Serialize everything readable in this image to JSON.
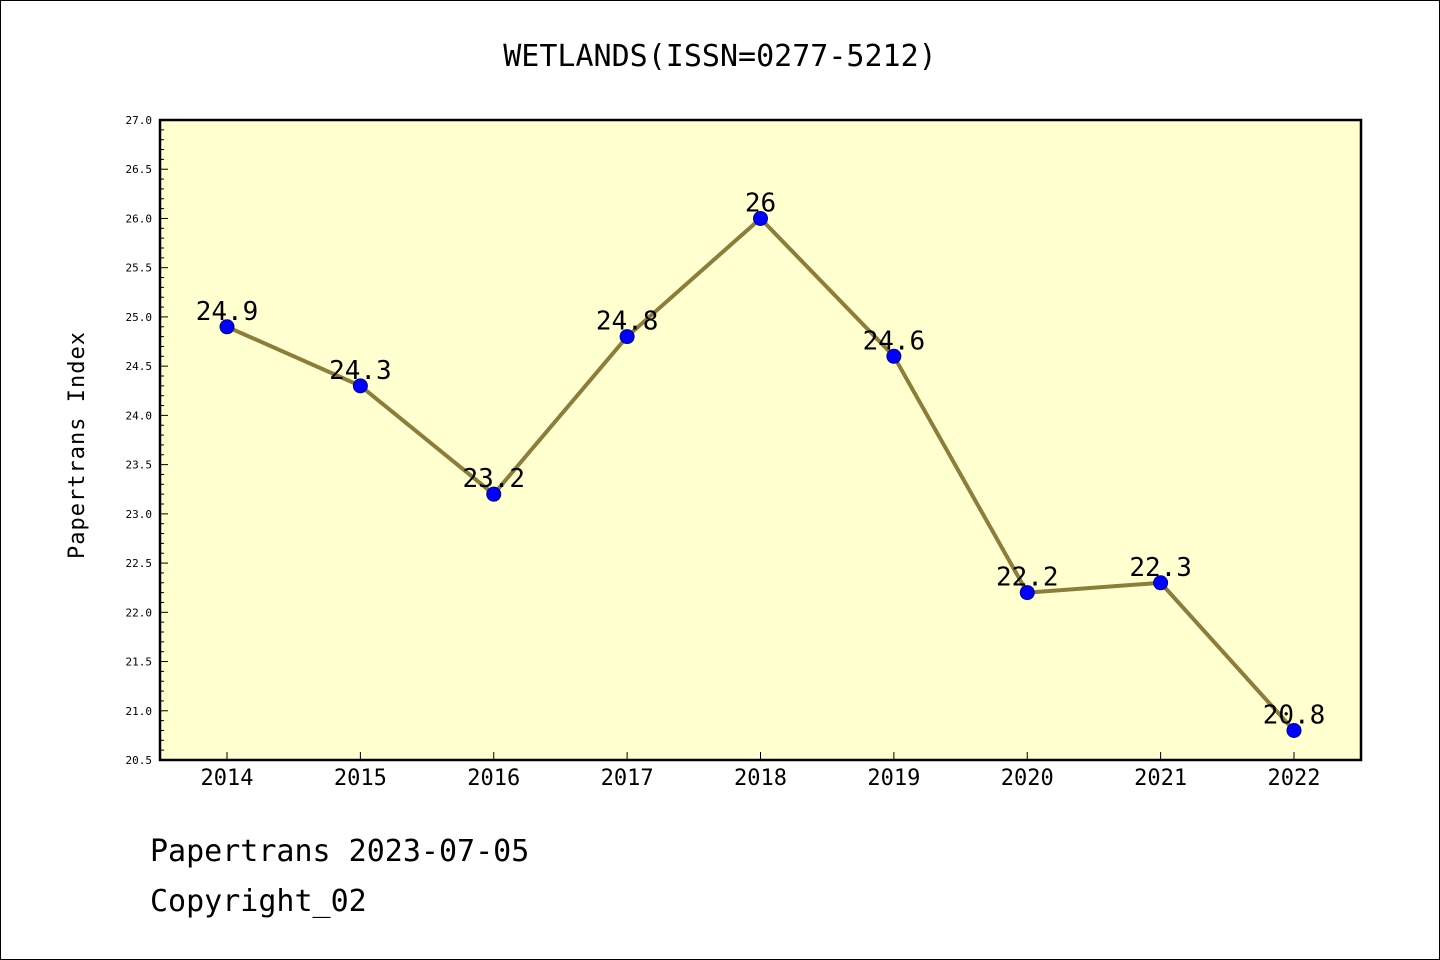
{
  "chart_data": {
    "type": "line",
    "title": "WETLANDS(ISSN=0277-5212)",
    "xlabel": "",
    "ylabel": "Papertrans Index",
    "categories": [
      "2014",
      "2015",
      "2016",
      "2017",
      "2018",
      "2019",
      "2020",
      "2021",
      "2022"
    ],
    "series": [
      {
        "values": [
          24.9,
          24.3,
          23.2,
          24.8,
          26.0,
          24.6,
          22.2,
          22.3,
          20.8
        ],
        "data_labels": [
          "24.9",
          "24.3",
          "23.2",
          "24.8",
          "26",
          "24.6",
          "22.2",
          "22.3",
          "20.8"
        ]
      }
    ],
    "ylim": [
      20.5,
      27.0
    ],
    "yticks": [
      "20.5",
      "21.0",
      "21.5",
      "22.0",
      "22.5",
      "23.0",
      "23.5",
      "24.0",
      "24.5",
      "25.0",
      "25.5",
      "26.0",
      "26.5",
      "27.0"
    ],
    "grid": false,
    "legend": "none",
    "colors": {
      "plot_background": "#ffffd0",
      "line": "#8b7d3a",
      "marker": "#0000ff"
    }
  },
  "footer": {
    "line1": "Papertrans 2023-07-05",
    "line2": "Copyright_02"
  }
}
